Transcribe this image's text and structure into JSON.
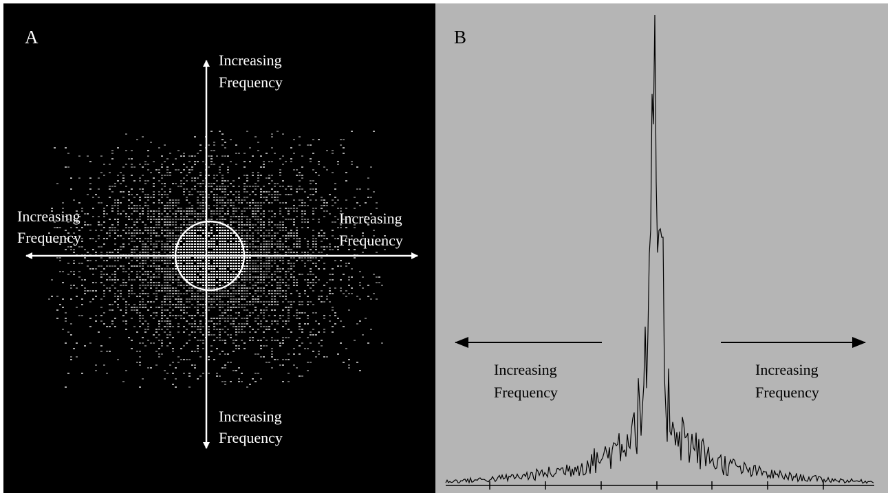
{
  "panels": [
    {
      "label": "A",
      "annotations": [
        [
          "Increasing",
          "Frequency"
        ],
        [
          "Increasing",
          "Frequency"
        ],
        [
          "Increasing",
          "Frequency"
        ],
        [
          "Increasing",
          "Frequency"
        ]
      ]
    },
    {
      "label": "B",
      "annotations": [
        [
          "Increasing",
          "Frequency"
        ],
        [
          "Increasing",
          "Frequency"
        ]
      ]
    }
  ]
}
